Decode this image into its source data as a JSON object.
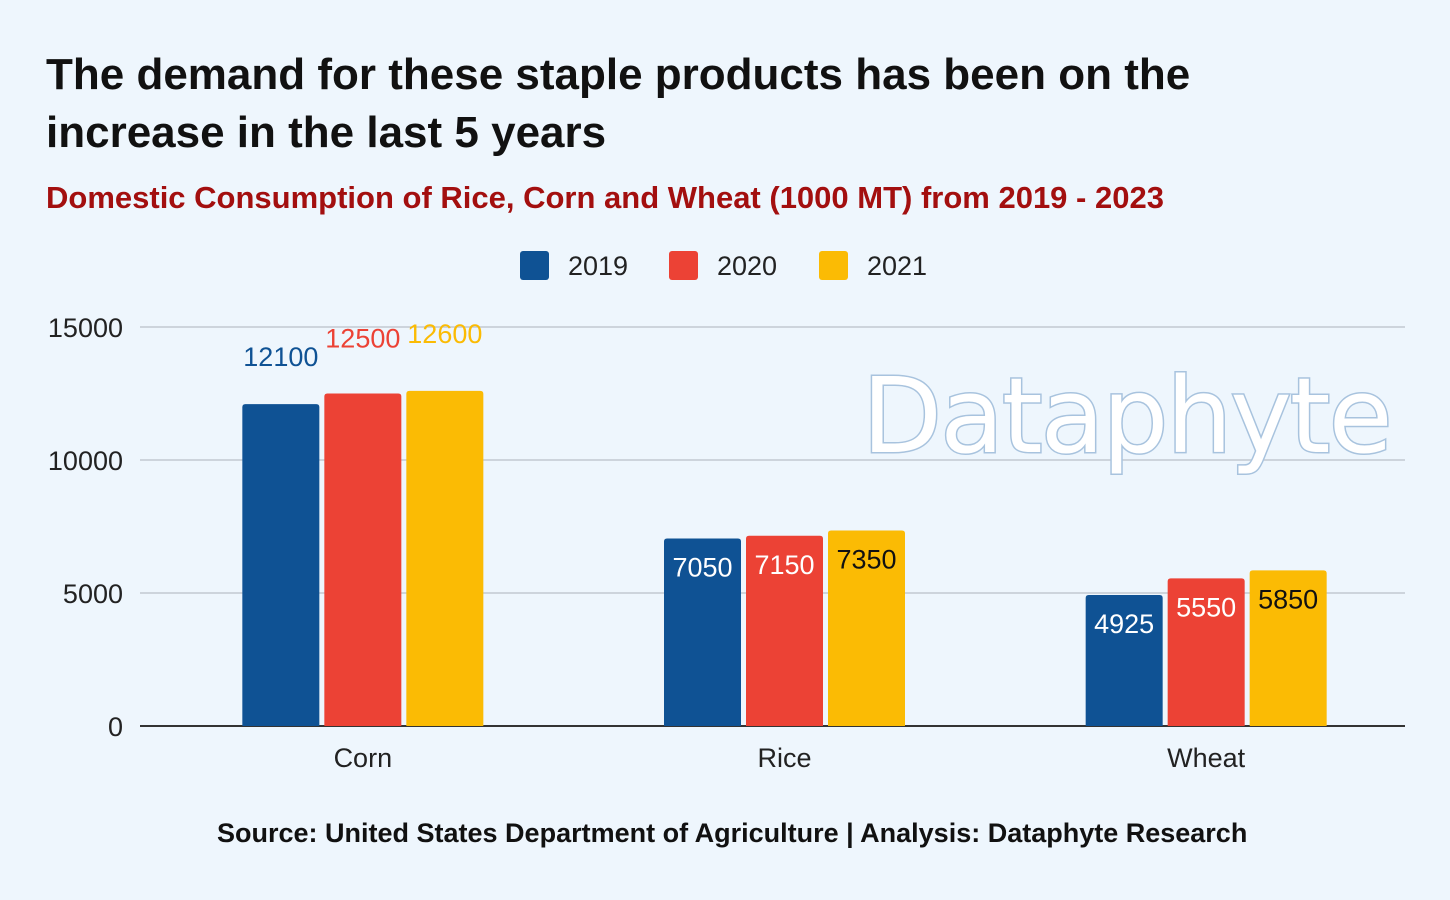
{
  "title": "The demand for these staple products has been on the increase in the last 5 years",
  "subtitle": "Domestic Consumption of Rice, Corn and Wheat (1000 MT) from 2019 - 2023",
  "source": "Source: United States Department of Agriculture | Analysis: Dataphyte  Research",
  "watermark": "Dataphyte",
  "chart_data": {
    "type": "bar",
    "categories": [
      "Corn",
      "Rice",
      "Wheat"
    ],
    "series": [
      {
        "name": "2019",
        "color": "#0f5294",
        "values": [
          12100,
          7050,
          4925
        ]
      },
      {
        "name": "2020",
        "color": "#ec4235",
        "values": [
          12500,
          7150,
          5550
        ]
      },
      {
        "name": "2021",
        "color": "#fbbb04",
        "values": [
          12600,
          7350,
          5850
        ]
      }
    ],
    "ylim": [
      0,
      15000
    ],
    "yticks": [
      "0",
      "5000",
      "10000",
      "15000"
    ],
    "xlabel": "",
    "ylabel": "",
    "grid": true,
    "legend": "top-center"
  }
}
